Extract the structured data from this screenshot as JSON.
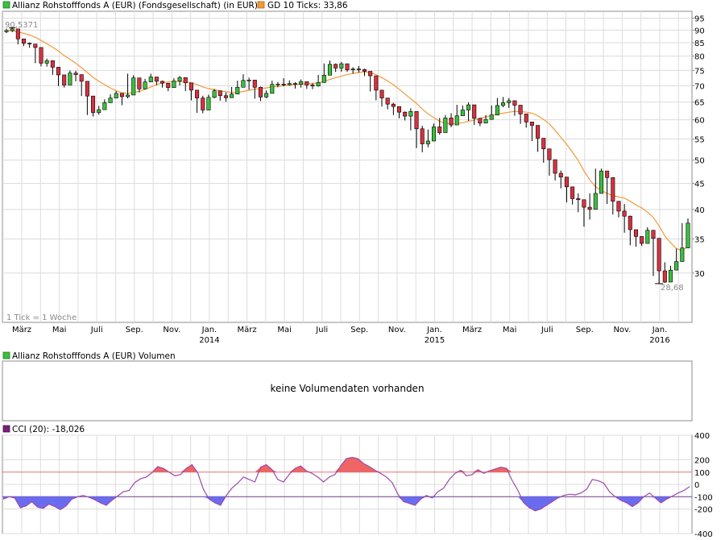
{
  "colors": {
    "up": "#3cbf3c",
    "down": "#d9313f",
    "sma": "#f39a38",
    "cci": "#9b4aa8",
    "cci_pos_fill": "#ef6464",
    "cci_neg_fill": "#6a6cf0",
    "ref_line": "#e57373",
    "grid": "#dcdcdc"
  },
  "legend": {
    "main_label": "Allianz Rohstofffonds A (EUR) (Fondsgesellschaft) (in EUR)",
    "sma_label": "GD 10 Ticks: 33,86",
    "volume_label": "Allianz Rohstofffonds A (EUR) Volumen",
    "cci_label": "CCI (20): -18,026"
  },
  "annotations": {
    "max_label": "90,5371",
    "min_label": "28,68",
    "tick_note": "1 Tick = 1 Woche",
    "volume_message": "keine Volumendaten vorhanden"
  },
  "chart_data": [
    {
      "type": "candlestick",
      "log_scale": true,
      "grid": true,
      "ylim": [
        24,
        98
      ],
      "y_ticks": [
        30,
        35,
        40,
        45,
        50,
        55,
        60,
        65,
        70,
        75,
        80,
        85,
        90,
        95
      ],
      "x_labels": [
        {
          "label": "März",
          "year": ""
        },
        {
          "label": "Mai",
          "year": ""
        },
        {
          "label": "Juli",
          "year": ""
        },
        {
          "label": "Sep.",
          "year": ""
        },
        {
          "label": "Nov.",
          "year": ""
        },
        {
          "label": "Jan.",
          "year": "2014"
        },
        {
          "label": "März",
          "year": ""
        },
        {
          "label": "Mai",
          "year": ""
        },
        {
          "label": "Juli",
          "year": ""
        },
        {
          "label": "Sep.",
          "year": ""
        },
        {
          "label": "Nov.",
          "year": ""
        },
        {
          "label": "Jan.",
          "year": "2015"
        },
        {
          "label": "März",
          "year": ""
        },
        {
          "label": "Mai",
          "year": ""
        },
        {
          "label": "Juli",
          "year": ""
        },
        {
          "label": "Sep.",
          "year": ""
        },
        {
          "label": "Nov.",
          "year": ""
        },
        {
          "label": "Jan.",
          "year": "2016"
        }
      ],
      "close": [
        89.8,
        90.5,
        86.5,
        84.8,
        84.5,
        83.2,
        77.5,
        78.4,
        76.1,
        73.5,
        70.2,
        74.1,
        73.6,
        71.4,
        66.8,
        62.0,
        62.8,
        64.8,
        66.2,
        67.6,
        66.6,
        67.1,
        72.5,
        69.0,
        71.2,
        72.8,
        71.4,
        70.8,
        69.4,
        71.5,
        72.6,
        70.9,
        68.6,
        66.2,
        62.7,
        66.4,
        68.4,
        66.9,
        66.3,
        67.4,
        69.5,
        71.7,
        71.8,
        69.5,
        66.5,
        67.6,
        70.4,
        70.5,
        70.3,
        70.7,
        70.4,
        71.3,
        70.2,
        69.9,
        71.0,
        73.4,
        77.1,
        75.8,
        77.3,
        75.2,
        75.5,
        75.3,
        74.7,
        73.2,
        68.6,
        66.2,
        64.4,
        63.7,
        62.1,
        61.0,
        62.3,
        57.6,
        53.8,
        54.5,
        58.1,
        56.6,
        60.5,
        58.6,
        61.1,
        62.7,
        64.2,
        60.4,
        59.1,
        60.1,
        61.3,
        64.0,
        64.8,
        65.4,
        64.1,
        61.6,
        59.4,
        58.5,
        55.2,
        52.6,
        50.1,
        47.1,
        46.3,
        44.3,
        42.0,
        41.8,
        40.4,
        40.0,
        43.0,
        47.6,
        46.2,
        41.5,
        39.7,
        38.8,
        36.5,
        35.4,
        34.3,
        36.4,
        35.1,
        30.3,
        28.8,
        30.4,
        31.6,
        33.6,
        37.6
      ],
      "high": [
        90.6,
        91.0,
        87.2,
        85.6,
        85.1,
        84.0,
        78.6,
        79.1,
        77.0,
        74.5,
        73.1,
        75.0,
        74.9,
        72.6,
        67.9,
        63.3,
        63.9,
        65.8,
        67.3,
        68.3,
        67.5,
        73.9,
        73.4,
        70.0,
        72.2,
        73.9,
        72.4,
        71.6,
        70.3,
        72.4,
        73.2,
        71.9,
        69.5,
        67.3,
        66.9,
        67.2,
        69.0,
        67.5,
        67.9,
        69.6,
        71.6,
        73.7,
        72.6,
        70.3,
        69.7,
        68.5,
        71.6,
        71.2,
        72.4,
        71.7,
        71.1,
        72.0,
        71.0,
        70.8,
        73.5,
        77.4,
        78.4,
        77.4,
        77.9,
        76.4,
        76.1,
        76.5,
        75.6,
        73.9,
        69.7,
        67.1,
        65.3,
        64.8,
        62.9,
        62.3,
        63.2,
        61.9,
        58.4,
        57.4,
        59.0,
        60.5,
        61.3,
        61.8,
        64.2,
        64.0,
        64.9,
        61.0,
        60.4,
        61.3,
        64.0,
        66.2,
        66.5,
        66.2,
        64.9,
        62.5,
        60.2,
        59.3,
        56.2,
        53.6,
        51.1,
        48.6,
        47.7,
        45.1,
        44.2,
        43.0,
        41.7,
        43.0,
        48.1,
        48.1,
        47.0,
        46.2,
        40.9,
        41.0,
        38.9,
        36.5,
        35.2,
        36.9,
        36.2,
        34.3,
        31.5,
        31.0,
        33.5,
        37.6,
        38.4
      ],
      "low": [
        88.8,
        89.2,
        84.4,
        83.7,
        83.1,
        77.5,
        76.4,
        76.3,
        73.5,
        69.9,
        69.4,
        72.7,
        71.4,
        66.8,
        61.3,
        60.9,
        61.4,
        63.6,
        65.3,
        66.2,
        64.1,
        66.1,
        68.4,
        67.9,
        68.8,
        71.1,
        70.2,
        69.4,
        68.3,
        70.3,
        70.1,
        68.3,
        65.5,
        61.9,
        61.8,
        65.5,
        66.1,
        65.4,
        65.1,
        66.4,
        68.6,
        70.5,
        68.7,
        66.0,
        65.3,
        66.2,
        69.1,
        69.5,
        69.8,
        70.0,
        69.1,
        69.4,
        69.0,
        68.9,
        69.7,
        72.7,
        75.2,
        74.5,
        74.6,
        74.5,
        73.9,
        74.3,
        73.1,
        68.2,
        65.5,
        63.7,
        62.9,
        61.3,
        60.4,
        59.8,
        57.2,
        52.8,
        51.8,
        53.0,
        55.8,
        56.1,
        57.6,
        58.0,
        59.8,
        61.3,
        59.7,
        58.6,
        58.3,
        59.4,
        60.7,
        63.4,
        63.5,
        63.3,
        61.1,
        58.9,
        57.9,
        54.5,
        51.9,
        49.4,
        46.6,
        45.6,
        44.0,
        41.3,
        40.9,
        39.5,
        37.0,
        38.2,
        42.4,
        44.5,
        41.0,
        39.1,
        38.6,
        36.0,
        34.0,
        33.8,
        33.9,
        34.5,
        29.6,
        28.6,
        28.68,
        29.7,
        31.1,
        33.4,
        35.2
      ],
      "sma": [
        89.9,
        89.8,
        89.3,
        88.7,
        88.0,
        87.1,
        85.9,
        84.6,
        83.3,
        81.9,
        80.2,
        78.9,
        77.5,
        75.9,
        74.3,
        72.7,
        71.4,
        70.3,
        69.3,
        68.4,
        67.8,
        67.6,
        67.9,
        68.2,
        68.9,
        69.6,
        70.3,
        70.9,
        71.2,
        71.3,
        71.4,
        71.3,
        70.9,
        70.4,
        69.6,
        69.1,
        68.8,
        68.4,
        68.1,
        67.9,
        67.9,
        68.2,
        68.6,
        68.9,
        69.1,
        69.3,
        69.6,
        69.8,
        70.0,
        70.2,
        70.4,
        70.5,
        70.6,
        70.7,
        70.9,
        71.4,
        72.0,
        72.6,
        73.1,
        73.6,
        74.0,
        74.3,
        74.5,
        74.3,
        73.6,
        72.6,
        71.5,
        70.3,
        68.9,
        67.4,
        66.0,
        64.6,
        63.0,
        61.6,
        60.6,
        59.6,
        59.1,
        58.9,
        59.0,
        59.2,
        59.6,
        59.9,
        60.4,
        60.8,
        61.2,
        61.6,
        61.8,
        62.1,
        62.3,
        62.3,
        62.1,
        61.8,
        61.1,
        60.1,
        58.9,
        57.2,
        55.4,
        53.7,
        51.8,
        49.9,
        47.6,
        45.7,
        44.3,
        43.6,
        43.0,
        42.6,
        42.3,
        42.1,
        41.5,
        40.8,
        40.3,
        39.5,
        38.6,
        37.1,
        35.5,
        34.4,
        33.5,
        33.2,
        33.86
      ]
    },
    {
      "type": "area",
      "name": "",
      "ylim": [
        -400,
        400
      ],
      "y_ticks": [
        400,
        200,
        100,
        0,
        -100,
        -200,
        -400
      ],
      "ref_lines": [
        100,
        -100
      ],
      "values": [
        -120,
        -100,
        -110,
        -190,
        -175,
        -140,
        -185,
        -195,
        -160,
        -180,
        -205,
        -175,
        -120,
        -100,
        -90,
        -105,
        -125,
        -150,
        -170,
        -130,
        -95,
        -60,
        -50,
        15,
        45,
        60,
        95,
        145,
        130,
        100,
        70,
        80,
        130,
        160,
        95,
        -40,
        -120,
        -150,
        -170,
        -90,
        -30,
        10,
        60,
        40,
        20,
        140,
        160,
        120,
        40,
        20,
        80,
        130,
        150,
        110,
        90,
        60,
        20,
        60,
        80,
        150,
        210,
        220,
        210,
        170,
        145,
        115,
        90,
        60,
        15,
        -80,
        -140,
        -155,
        -170,
        -120,
        -90,
        -110,
        -60,
        -30,
        40,
        90,
        115,
        70,
        80,
        120,
        90,
        110,
        125,
        140,
        130,
        30,
        -50,
        -150,
        -190,
        -215,
        -200,
        -170,
        -140,
        -110,
        -90,
        -80,
        -85,
        -70,
        -40,
        40,
        30,
        10,
        -60,
        -100,
        -130,
        -150,
        -180,
        -150,
        -100,
        -70,
        -110,
        -150,
        -120,
        -95,
        -70,
        -50,
        -18
      ]
    }
  ]
}
